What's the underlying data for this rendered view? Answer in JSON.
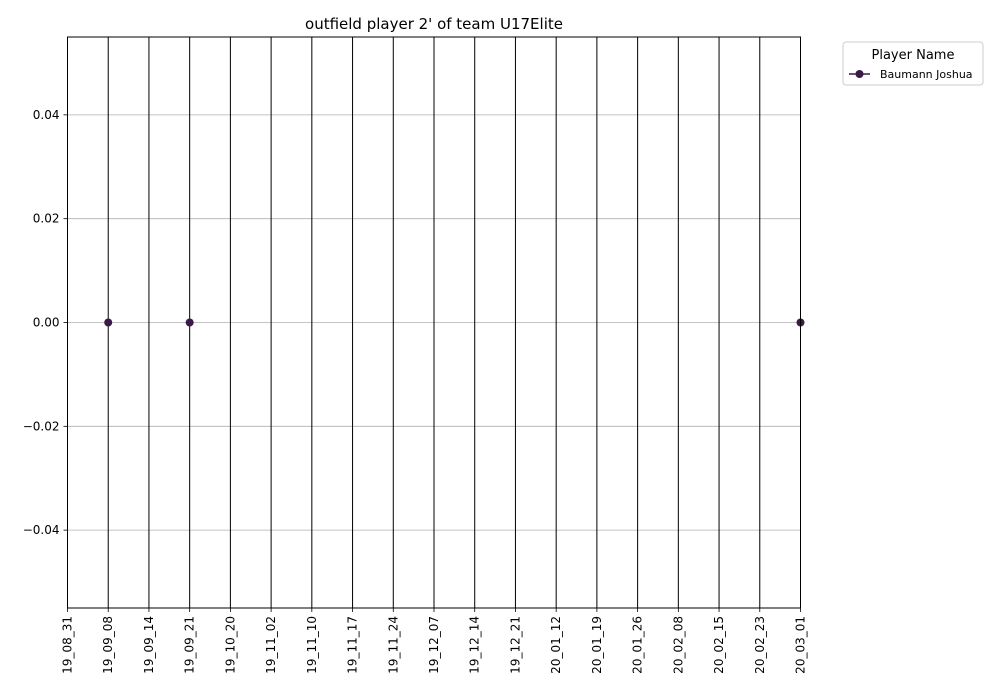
{
  "chart_data": {
    "type": "line",
    "title": "outfield player 2' of team U17Elite",
    "xlabel": "",
    "ylabel": "",
    "categories": [
      "19_08_31",
      "19_09_08",
      "19_09_14",
      "19_09_21",
      "19_10_20",
      "19_11_02",
      "19_11_10",
      "19_11_17",
      "19_11_24",
      "19_12_07",
      "19_12_14",
      "19_12_21",
      "20_01_12",
      "20_01_19",
      "20_01_26",
      "20_02_08",
      "20_02_15",
      "20_02_23",
      "20_03_01"
    ],
    "ylim": [
      -0.055,
      0.055
    ],
    "yticks": [
      "−0.04",
      "−0.02",
      "0.00",
      "0.02",
      "0.04"
    ],
    "ytick_values": [
      -0.04,
      -0.02,
      0.0,
      0.02,
      0.04
    ],
    "grid": "horizontal",
    "vertical_lines_at_every_category": true,
    "legend": {
      "title": "Player Name",
      "placement": "outside-top-right"
    },
    "series": [
      {
        "name": "Baumann Joshua",
        "color": "#3b1a47",
        "points": [
          {
            "x": "19_09_08",
            "y": 0.0
          },
          {
            "x": "19_09_21",
            "y": 0.0
          },
          {
            "x": "20_03_01",
            "y": 0.0
          }
        ]
      }
    ]
  }
}
